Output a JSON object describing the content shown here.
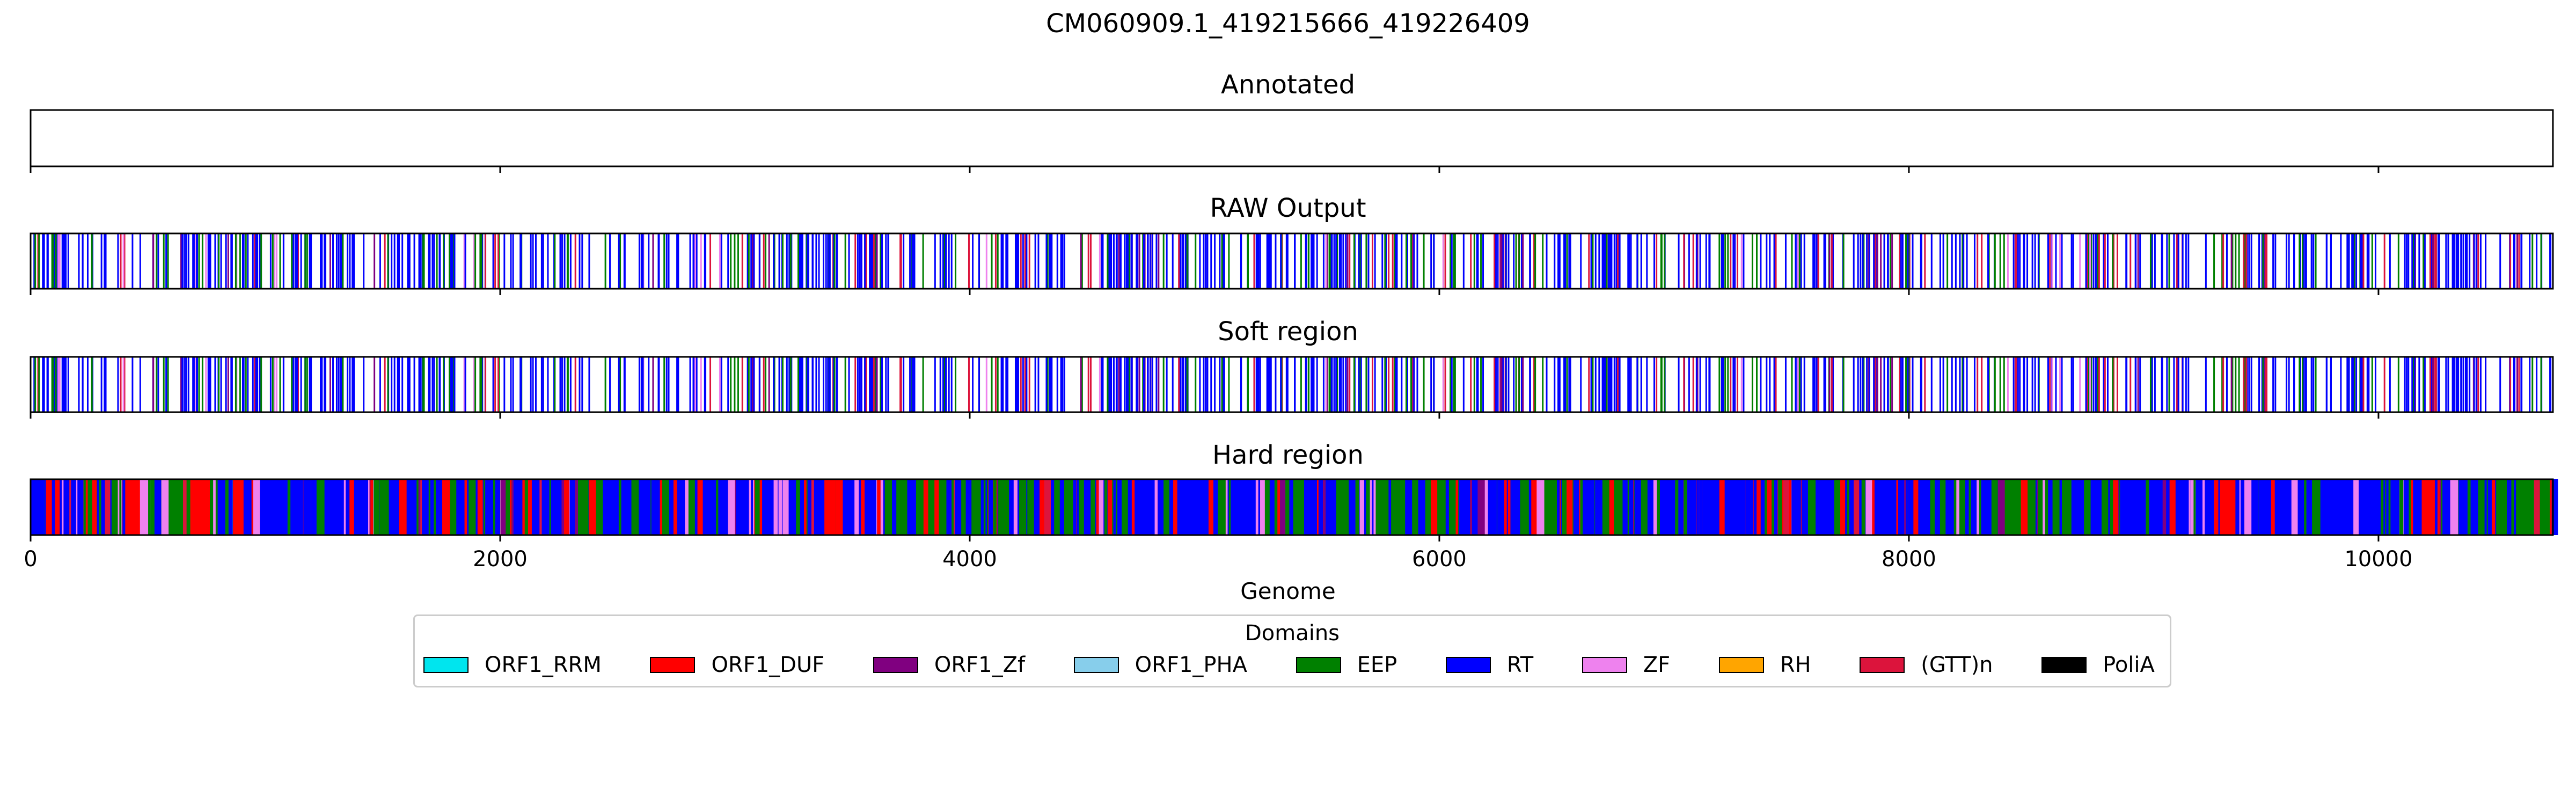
{
  "figure": {
    "title": "CM060909.1_419215666_419226409"
  },
  "chart_data": {
    "type": "genome-track",
    "xlabel": "Genome",
    "xlim": [
      0,
      10743
    ],
    "xticks": [
      0,
      2000,
      4000,
      6000,
      8000,
      10000
    ],
    "xtick_labels": [
      "0",
      "2000",
      "4000",
      "6000",
      "8000",
      "10000"
    ],
    "domain_colors": {
      "ORF1_RRM": "#00e5ee",
      "ORF1_DUF": "#ff0000",
      "ORF1_Zf": "#800080",
      "ORF1_PHA": "#87ceeb",
      "EEP": "#008000",
      "RT": "#0000ff",
      "ZF": "#ee82ee",
      "RH": "#ffa500",
      "(GTT)n": "#dc143c",
      "PoliA": "#000000"
    },
    "panels": [
      {
        "title": "Annotated",
        "style": "empty",
        "segments": []
      },
      {
        "title": "RAW Output",
        "style": "lines",
        "note": "dense per-position domain calls",
        "dominant": [
          {
            "domain": "RT",
            "start": 0,
            "end": 10743
          },
          {
            "domain": "EEP",
            "start": 0,
            "end": 10743
          },
          {
            "domain": "(GTT)n",
            "start": 0,
            "end": 10743
          }
        ]
      },
      {
        "title": "Soft region",
        "style": "lines",
        "dominant": [
          {
            "domain": "RT",
            "start": 0,
            "end": 10743
          },
          {
            "domain": "EEP",
            "start": 0,
            "end": 10743
          },
          {
            "domain": "(GTT)n",
            "start": 0,
            "end": 10743
          }
        ]
      },
      {
        "title": "Hard region",
        "style": "filled",
        "segments": [
          {
            "domain": "RT",
            "start": 0,
            "end": 60
          },
          {
            "domain": "EEP",
            "start": 60,
            "end": 180
          },
          {
            "domain": "ORF1_DUF",
            "start": 180,
            "end": 260
          },
          {
            "domain": "RT",
            "start": 260,
            "end": 380
          },
          {
            "domain": "ORF1_DUF",
            "start": 380,
            "end": 460
          },
          {
            "domain": "EEP",
            "start": 460,
            "end": 680
          },
          {
            "domain": "ORF1_DUF",
            "start": 680,
            "end": 740
          },
          {
            "domain": "RT",
            "start": 740,
            "end": 820
          },
          {
            "domain": "EEP",
            "start": 820,
            "end": 860
          },
          {
            "domain": "RT",
            "start": 860,
            "end": 1300
          },
          {
            "domain": "ZF",
            "start": 1300,
            "end": 1320
          },
          {
            "domain": "RT",
            "start": 1320,
            "end": 2000
          },
          {
            "domain": "ZF",
            "start": 2020,
            "end": 2045
          },
          {
            "domain": "RT",
            "start": 2045,
            "end": 2520
          },
          {
            "domain": "ORF1_DUF",
            "start": 2520,
            "end": 2560
          },
          {
            "domain": "RT",
            "start": 2560,
            "end": 2660
          },
          {
            "domain": "ORF1_DUF",
            "start": 2660,
            "end": 2720
          },
          {
            "domain": "RT",
            "start": 2720,
            "end": 3150
          },
          {
            "domain": "ZF",
            "start": 3150,
            "end": 3200
          },
          {
            "domain": "RT",
            "start": 3200,
            "end": 3400
          },
          {
            "domain": "ORF1_DUF",
            "start": 3400,
            "end": 3480
          },
          {
            "domain": "RT",
            "start": 3480,
            "end": 3640
          },
          {
            "domain": "EEP",
            "start": 3640,
            "end": 4080
          },
          {
            "domain": "ORF1_DUF",
            "start": 4080,
            "end": 4120
          },
          {
            "domain": "RT",
            "start": 4120,
            "end": 4800
          },
          {
            "domain": "ORF1_DUF",
            "start": 4800,
            "end": 4880
          },
          {
            "domain": "RT",
            "start": 4880,
            "end": 5700
          },
          {
            "domain": "ZF",
            "start": 5700,
            "end": 5730
          },
          {
            "domain": "EEP",
            "start": 5730,
            "end": 6500
          },
          {
            "domain": "ORF1_DUF",
            "start": 6500,
            "end": 6600
          },
          {
            "domain": "EEP",
            "start": 6600,
            "end": 6950
          },
          {
            "domain": "RT",
            "start": 6950,
            "end": 7400
          },
          {
            "domain": "ORF1_DUF",
            "start": 7400,
            "end": 7500
          },
          {
            "domain": "RT",
            "start": 7500,
            "end": 8100
          },
          {
            "domain": "EEP",
            "start": 8100,
            "end": 8700
          },
          {
            "domain": "RT",
            "start": 8700,
            "end": 9300
          },
          {
            "domain": "ORF1_DUF",
            "start": 9300,
            "end": 9400
          },
          {
            "domain": "RT",
            "start": 9400,
            "end": 10200
          },
          {
            "domain": "EEP",
            "start": 10200,
            "end": 10743
          }
        ]
      }
    ]
  },
  "legend": {
    "title": "Domains",
    "items": [
      {
        "label": "ORF1_RRM",
        "color": "#00e5ee"
      },
      {
        "label": "ORF1_DUF",
        "color": "#ff0000"
      },
      {
        "label": "ORF1_Zf",
        "color": "#800080"
      },
      {
        "label": "ORF1_PHA",
        "color": "#87ceeb"
      },
      {
        "label": "EEP",
        "color": "#008000"
      },
      {
        "label": "RT",
        "color": "#0000ff"
      },
      {
        "label": "ZF",
        "color": "#ee82ee"
      },
      {
        "label": "RH",
        "color": "#ffa500"
      },
      {
        "label": "(GTT)n",
        "color": "#dc143c"
      },
      {
        "label": "PoliA",
        "color": "#000000"
      }
    ]
  }
}
